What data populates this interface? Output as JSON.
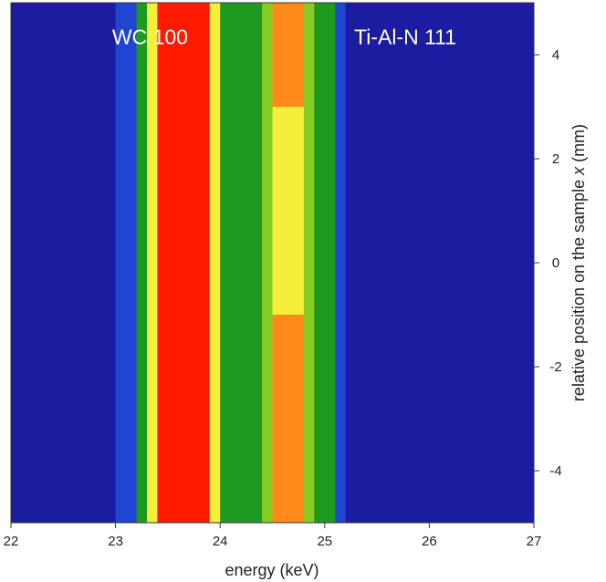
{
  "chart_data": {
    "type": "heatmap",
    "x_label": "energy (keV)",
    "y_label": {
      "before": "relative position on the sample ",
      "variable": "x",
      "unit": " (mm)"
    },
    "annotations": [
      {
        "text": "WC 100",
        "x": 23.33,
        "y": 4.2
      },
      {
        "text": "Ti-Al-N 111",
        "x": 25.77,
        "y": 4.2
      }
    ],
    "xbins": [
      22,
      22.1,
      22.2,
      22.3,
      22.4,
      22.5,
      22.6,
      22.7,
      22.8,
      22.9,
      23,
      23.1,
      23.2,
      23.3,
      23.4,
      23.5,
      23.6,
      23.7,
      23.8,
      23.9,
      24,
      24.1,
      24.2,
      24.3,
      24.4,
      24.5,
      24.6,
      24.7,
      24.8,
      24.9,
      25,
      25.1,
      25.2,
      25.3,
      25.4,
      25.5,
      25.6,
      25.7,
      25.8,
      25.9,
      26,
      26.1,
      26.2,
      26.3,
      26.4,
      26.5,
      26.6,
      26.7,
      26.8,
      26.9,
      27
    ],
    "ybins": [
      5,
      3,
      1,
      -1,
      -3,
      -5
    ],
    "values": [
      [
        0.1,
        0.1,
        0.1,
        0.1,
        0.1,
        0.1,
        0.1,
        0.1,
        0.1,
        0.1,
        0.15,
        0.25,
        0.45,
        0.7,
        1,
        1,
        1,
        1,
        1,
        0.6,
        0.45,
        0.35,
        0.35,
        0.35,
        0.55,
        0.8,
        0.8,
        0.8,
        0.55,
        0.35,
        0.3,
        0.2,
        0.1,
        0.1,
        0.1,
        0.1,
        0.1,
        0.1,
        0.1,
        0.1,
        0.1,
        0.1,
        0.1,
        0.1,
        0.1,
        0.1,
        0.1,
        0.1,
        0.1,
        0.1
      ],
      [
        0.1,
        0.1,
        0.1,
        0.1,
        0.1,
        0.1,
        0.1,
        0.1,
        0.1,
        0.1,
        0.15,
        0.25,
        0.45,
        0.7,
        1,
        1,
        1,
        1,
        1,
        0.6,
        0.45,
        0.4,
        0.4,
        0.4,
        0.55,
        0.7,
        0.7,
        0.7,
        0.55,
        0.35,
        0.3,
        0.2,
        0.1,
        0.1,
        0.1,
        0.1,
        0.1,
        0.1,
        0.1,
        0.1,
        0.1,
        0.1,
        0.1,
        0.1,
        0.1,
        0.1,
        0.1,
        0.1,
        0.1,
        0.1
      ],
      [
        0.1,
        0.1,
        0.1,
        0.1,
        0.1,
        0.1,
        0.1,
        0.1,
        0.1,
        0.1,
        0.15,
        0.25,
        0.45,
        0.7,
        1,
        1,
        1,
        1,
        1,
        0.6,
        0.45,
        0.45,
        0.45,
        0.45,
        0.55,
        0.6,
        0.6,
        0.6,
        0.55,
        0.35,
        0.3,
        0.2,
        0.1,
        0.1,
        0.1,
        0.1,
        0.1,
        0.1,
        0.1,
        0.1,
        0.1,
        0.1,
        0.1,
        0.1,
        0.1,
        0.1,
        0.1,
        0.1,
        0.1,
        0.1
      ],
      [
        0.1,
        0.1,
        0.1,
        0.1,
        0.1,
        0.1,
        0.1,
        0.1,
        0.1,
        0.1,
        0.15,
        0.25,
        0.45,
        0.7,
        1,
        1,
        1,
        1,
        1,
        0.6,
        0.45,
        0.35,
        0.35,
        0.35,
        0.55,
        0.75,
        0.75,
        0.75,
        0.55,
        0.35,
        0.3,
        0.2,
        0.1,
        0.1,
        0.1,
        0.1,
        0.1,
        0.1,
        0.1,
        0.1,
        0.1,
        0.1,
        0.1,
        0.1,
        0.1,
        0.1,
        0.1,
        0.1,
        0.1,
        0.1
      ],
      [
        0.1,
        0.1,
        0.1,
        0.1,
        0.1,
        0.1,
        0.1,
        0.1,
        0.1,
        0.1,
        0.15,
        0.25,
        0.45,
        0.7,
        1,
        1,
        1,
        1,
        1,
        0.6,
        0.45,
        0.35,
        0.35,
        0.35,
        0.55,
        0.8,
        0.8,
        0.8,
        0.55,
        0.35,
        0.3,
        0.2,
        0.1,
        0.1,
        0.1,
        0.1,
        0.1,
        0.1,
        0.1,
        0.1,
        0.1,
        0.1,
        0.1,
        0.1,
        0.1,
        0.1,
        0.1,
        0.1,
        0.1,
        0.1
      ]
    ],
    "levels": [
      0.15,
      0.3,
      0.5,
      0.6,
      0.75,
      0.9
    ],
    "colors": [
      "#1c1ca0",
      "#1f45d2",
      "#1f9a1f",
      "#86cc22",
      "#f5ee3a",
      "#ff8a1a",
      "#ff1a00"
    ],
    "xlim": [
      22,
      27
    ],
    "ylim": [
      -5,
      5
    ],
    "xticks": [
      22,
      23,
      24,
      25,
      26,
      27
    ],
    "yticks": [
      -4,
      -2,
      0,
      2,
      4
    ],
    "y_axis_side": "right"
  }
}
